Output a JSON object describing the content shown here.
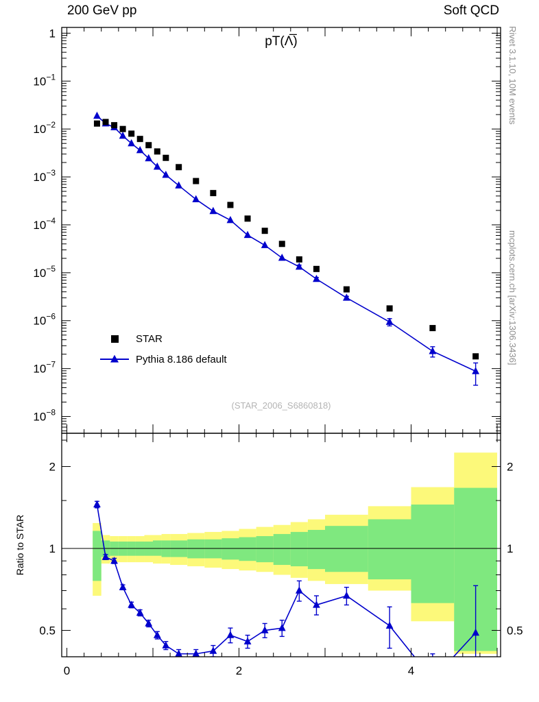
{
  "header": {
    "left": "200 GeV pp",
    "right": "Soft QCD"
  },
  "side_texts": {
    "top": "Rivet 3.1.10,  10M events",
    "bottom": "mcplots.cern.ch [arXiv:1306.3436]"
  },
  "watermark": "(STAR_2006_S6860818)",
  "colors": {
    "pythia_blue": "#0000cc",
    "star_black": "#000000",
    "band_yellow": "#fcf97a",
    "band_green": "#7fe87f",
    "gray_side_text": "#8e8e8e",
    "watermark_gray": "#b4b4b4"
  },
  "chart_data": {
    "type": "line",
    "title": "pT(Λ̅)",
    "xlabel": "",
    "ylabel": "",
    "x_major_ticks": [
      0,
      2,
      4
    ],
    "x_medium_ticks": [
      1,
      3,
      5
    ],
    "xlim": [
      -0.06,
      5.04
    ],
    "y_tick_exponents": [
      0,
      -1,
      -2,
      -3,
      -4,
      -5,
      -6,
      -7,
      -8
    ],
    "ylog": true,
    "x": [
      0.35,
      0.45,
      0.55,
      0.65,
      0.75,
      0.85,
      0.95,
      1.05,
      1.15,
      1.3,
      1.5,
      1.7,
      1.9,
      2.1,
      2.3,
      2.5,
      2.7,
      2.9,
      3.25,
      3.75,
      4.25,
      4.75
    ],
    "series": [
      {
        "name": "STAR",
        "marker": "square",
        "color": "#000000",
        "values": [
          0.013,
          0.014,
          0.012,
          0.01,
          0.008,
          0.0062,
          0.0046,
          0.0034,
          0.0025,
          0.0016,
          0.00082,
          0.00046,
          0.00026,
          0.000135,
          7.5e-05,
          4e-05,
          1.9e-05,
          1.2e-05,
          4.5e-06,
          1.8e-06,
          7e-07,
          1.8e-07
        ]
      },
      {
        "name": "Pythia 8.186 default",
        "marker": "triangle",
        "color": "#0000cc",
        "values": [
          0.0188,
          0.013,
          0.0108,
          0.0072,
          0.005,
          0.0036,
          0.00244,
          0.00163,
          0.0011,
          0.00066,
          0.00034,
          0.000193,
          0.000125,
          6.1e-05,
          3.75e-05,
          2.04e-05,
          1.33e-05,
          7.4e-06,
          3e-06,
          9.4e-07,
          2.3e-07,
          8.8e-08
        ]
      }
    ],
    "ratio_panel": {
      "ylabel": "Ratio to STAR",
      "y_ticks": [
        0.5,
        1,
        2
      ],
      "y_minor_ticks": [
        0.6,
        0.7,
        0.8,
        0.9,
        1.5,
        2.5
      ],
      "ylim": [
        0.4,
        2.65
      ],
      "bin_edges": [
        0.3,
        0.4,
        0.5,
        0.6,
        0.7,
        0.8,
        0.9,
        1.0,
        1.1,
        1.2,
        1.4,
        1.6,
        1.8,
        2.0,
        2.2,
        2.4,
        2.6,
        2.8,
        3.0,
        3.5,
        4.0,
        4.5,
        5.0
      ],
      "yellow_lo": [
        0.67,
        0.88,
        0.89,
        0.89,
        0.89,
        0.89,
        0.89,
        0.88,
        0.88,
        0.87,
        0.86,
        0.85,
        0.84,
        0.83,
        0.82,
        0.8,
        0.78,
        0.76,
        0.74,
        0.7,
        0.54,
        0.41
      ],
      "yellow_hi": [
        1.24,
        1.12,
        1.11,
        1.11,
        1.11,
        1.11,
        1.12,
        1.12,
        1.13,
        1.13,
        1.14,
        1.15,
        1.16,
        1.18,
        1.2,
        1.22,
        1.25,
        1.28,
        1.33,
        1.43,
        1.68,
        2.25
      ],
      "green_lo": [
        0.76,
        0.93,
        0.94,
        0.94,
        0.94,
        0.94,
        0.94,
        0.94,
        0.93,
        0.93,
        0.92,
        0.92,
        0.91,
        0.9,
        0.89,
        0.87,
        0.86,
        0.84,
        0.82,
        0.77,
        0.63,
        0.42
      ],
      "green_hi": [
        1.16,
        1.07,
        1.06,
        1.06,
        1.06,
        1.06,
        1.06,
        1.07,
        1.07,
        1.07,
        1.08,
        1.08,
        1.09,
        1.1,
        1.11,
        1.13,
        1.15,
        1.17,
        1.21,
        1.28,
        1.45,
        1.67
      ],
      "ratio": [
        1.45,
        0.93,
        0.9,
        0.72,
        0.62,
        0.58,
        0.53,
        0.48,
        0.44,
        0.41,
        0.41,
        0.42,
        0.48,
        0.455,
        0.5,
        0.51,
        0.7,
        0.62,
        0.67,
        0.52,
        0.33,
        0.49
      ],
      "ratio_err": [
        0.04,
        0.02,
        0.02,
        0.015,
        0.015,
        0.015,
        0.015,
        0.015,
        0.015,
        0.015,
        0.015,
        0.02,
        0.03,
        0.025,
        0.03,
        0.035,
        0.06,
        0.05,
        0.05,
        0.09,
        0.08,
        0.24
      ]
    }
  }
}
